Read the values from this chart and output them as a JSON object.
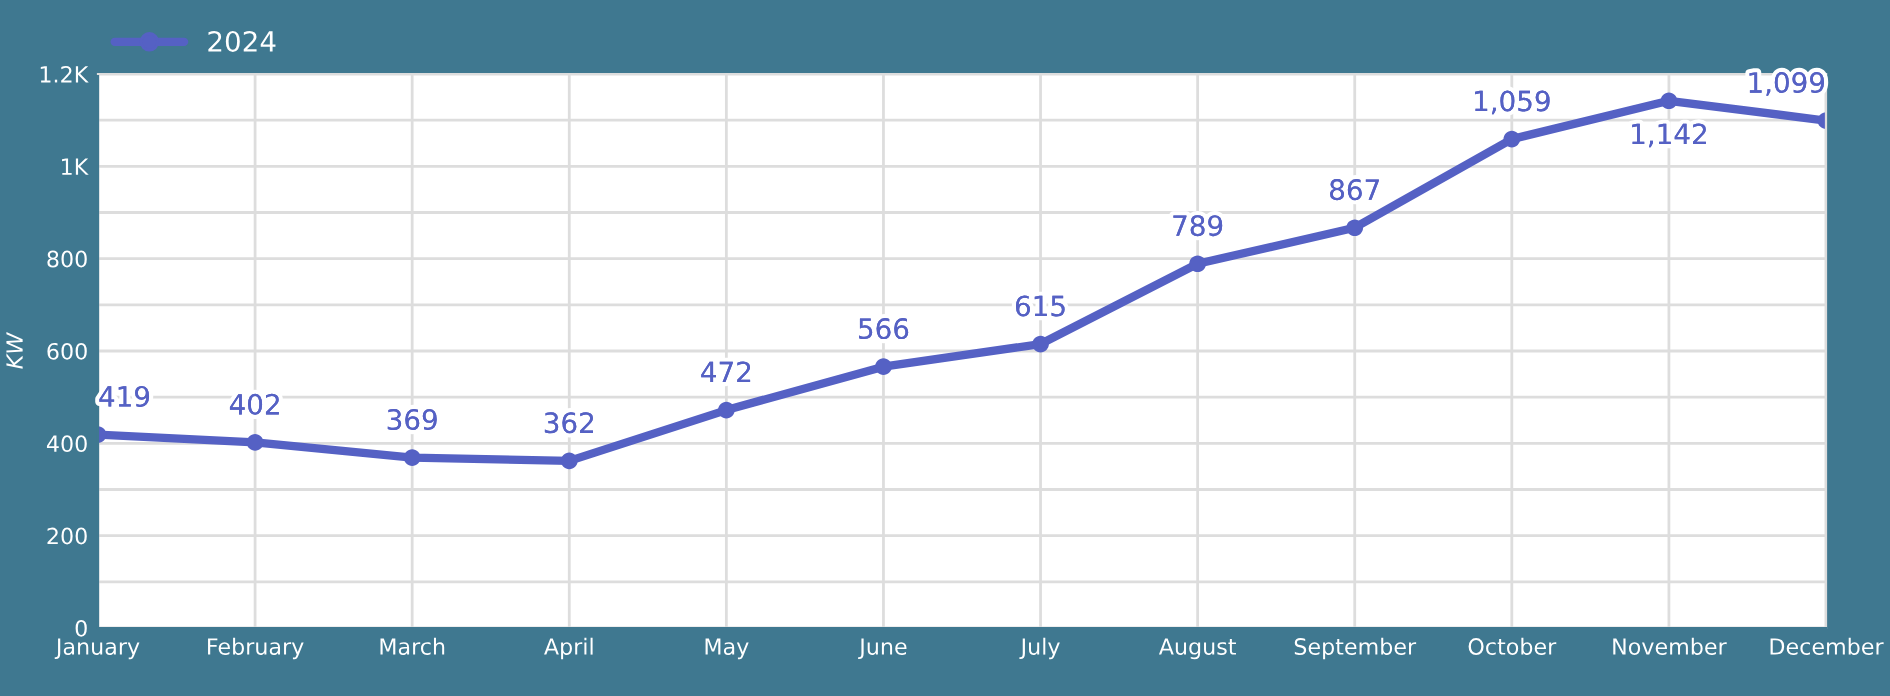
{
  "chart_data": {
    "type": "line",
    "ylabel": "KW",
    "categories": [
      "January",
      "February",
      "March",
      "April",
      "May",
      "June",
      "July",
      "August",
      "September",
      "October",
      "November",
      "December"
    ],
    "series": [
      {
        "name": "2024",
        "color": "#5561c4",
        "values": [
          419,
          402,
          369,
          362,
          472,
          566,
          615,
          789,
          867,
          1059,
          1142,
          1099
        ],
        "value_labels": [
          "419",
          "402",
          "369",
          "362",
          "472",
          "566",
          "615",
          "789",
          "867",
          "1,059",
          "1,142",
          "1,099"
        ]
      }
    ],
    "ylim": [
      0,
      1200
    ],
    "yticks": [
      0,
      {
        "value": 100,
        "label": null
      },
      200,
      {
        "value": 300,
        "label": null
      },
      400,
      {
        "value": 500,
        "label": null
      },
      600,
      {
        "value": 700,
        "label": null
      },
      800,
      {
        "value": 900,
        "label": null
      },
      {
        "value": 1000,
        "label": "1K"
      },
      {
        "value": 1100,
        "label": null
      },
      {
        "value": 1200,
        "label": "1.2K"
      }
    ],
    "grid": true,
    "legend": "top left",
    "marker": "circle",
    "line_style": "solid"
  }
}
